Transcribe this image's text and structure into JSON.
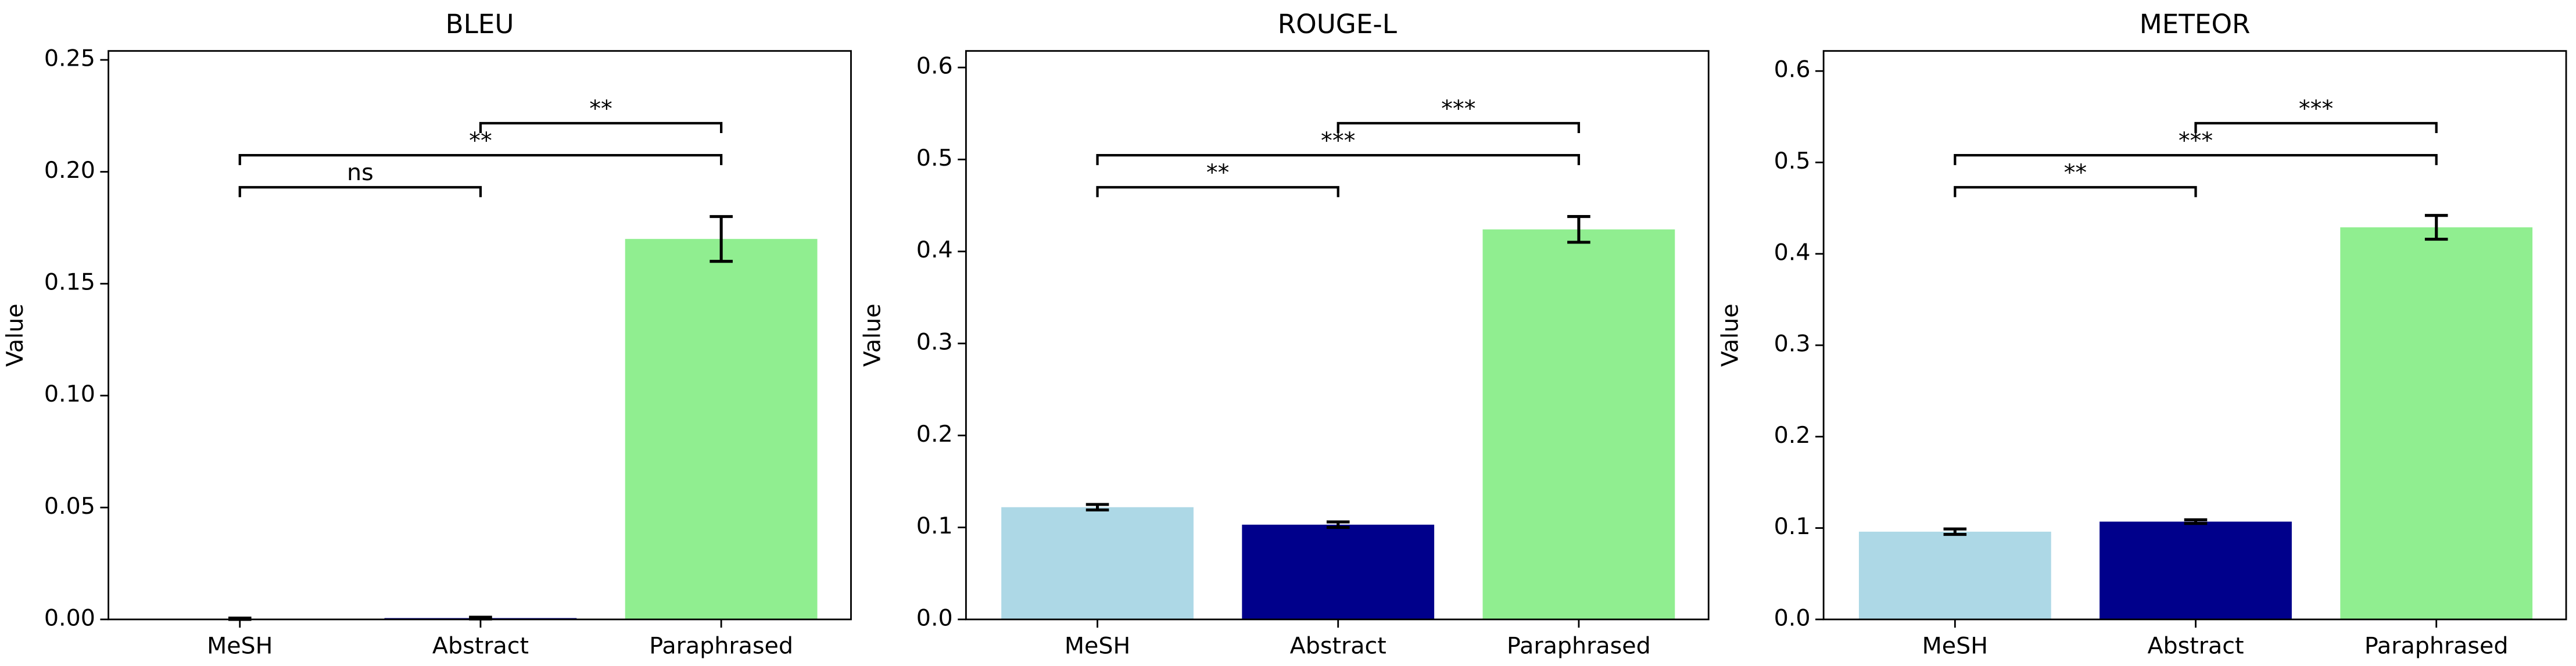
{
  "chart_data": [
    {
      "type": "bar",
      "title": "BLEU",
      "ylabel": "Value",
      "categories": [
        "MeSH",
        "Abstract",
        "Paraphrased"
      ],
      "values": [
        0.0003,
        0.0006,
        0.17
      ],
      "errors": [
        0.0003,
        0.0004,
        0.01
      ],
      "colors": [
        "#add8e6",
        "#00008b",
        "#90ee90"
      ],
      "ylim": [
        0,
        0.254
      ],
      "yticks": [
        {
          "value": 0,
          "label": "0.00"
        },
        {
          "value": 0.05,
          "label": "0.05"
        },
        {
          "value": 0.1,
          "label": "0.10"
        },
        {
          "value": 0.15,
          "label": "0.15"
        },
        {
          "value": 0.2,
          "label": "0.20"
        },
        {
          "value": 0.25,
          "label": "0.25"
        }
      ],
      "significance": [
        {
          "between": [
            0,
            1
          ],
          "label": "ns"
        },
        {
          "between": [
            0,
            2
          ],
          "label": "**"
        },
        {
          "between": [
            1,
            2
          ],
          "label": "**"
        }
      ]
    },
    {
      "type": "bar",
      "title": "ROUGE-L",
      "ylabel": "Value",
      "categories": [
        "MeSH",
        "Abstract",
        "Paraphrased"
      ],
      "values": [
        0.122,
        0.103,
        0.424
      ],
      "errors": [
        0.003,
        0.003,
        0.014
      ],
      "colors": [
        "#add8e6",
        "#00008b",
        "#90ee90"
      ],
      "ylim": [
        0,
        0.618
      ],
      "yticks": [
        {
          "value": 0,
          "label": "0.0"
        },
        0.1,
        0.2,
        0.3,
        0.4,
        0.5,
        0.6
      ],
      "significance": [
        {
          "between": [
            0,
            1
          ],
          "label": "**"
        },
        {
          "between": [
            0,
            2
          ],
          "label": "***"
        },
        {
          "between": [
            1,
            2
          ],
          "label": "***"
        }
      ]
    },
    {
      "type": "bar",
      "title": "METEOR",
      "ylabel": "Value",
      "categories": [
        "MeSH",
        "Abstract",
        "Paraphrased"
      ],
      "values": [
        0.096,
        0.107,
        0.429
      ],
      "errors": [
        0.003,
        0.002,
        0.013
      ],
      "colors": [
        "#add8e6",
        "#00008b",
        "#90ee90"
      ],
      "ylim": [
        0,
        0.622
      ],
      "yticks": [
        {
          "value": 0,
          "label": "0.0"
        },
        0.1,
        0.2,
        0.3,
        0.4,
        0.5,
        0.6
      ],
      "significance": [
        {
          "between": [
            0,
            1
          ],
          "label": "**"
        },
        {
          "between": [
            0,
            2
          ],
          "label": "***"
        },
        {
          "between": [
            1,
            2
          ],
          "label": "***"
        }
      ]
    }
  ]
}
